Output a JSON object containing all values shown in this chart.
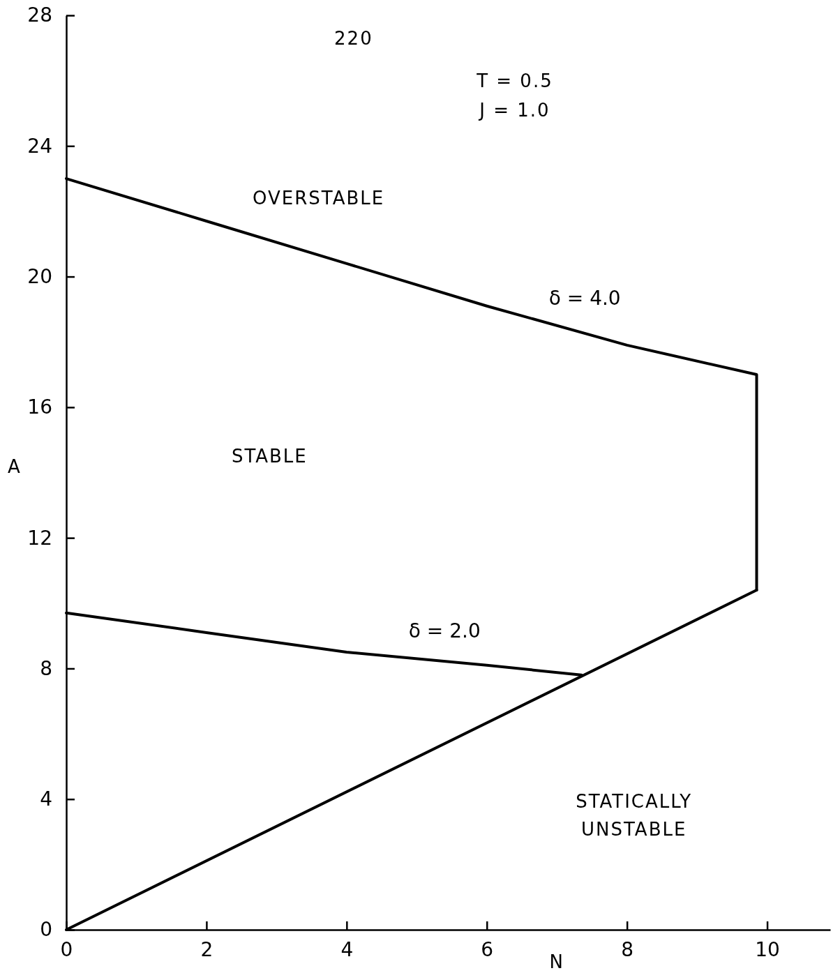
{
  "chart_data": {
    "type": "line",
    "xlabel": "N",
    "ylabel": "A",
    "xlim": [
      0,
      10.9
    ],
    "ylim": [
      0,
      28
    ],
    "xticks": [
      0,
      2,
      4,
      6,
      8,
      10
    ],
    "yticks": [
      0,
      4,
      8,
      12,
      16,
      20,
      24,
      28
    ],
    "grid": false,
    "legend": false,
    "marker": "none",
    "line_style": "solid",
    "series": [
      {
        "name": "δ = 4.0",
        "color": "#000000",
        "x": [
          0,
          2,
          4,
          6,
          8,
          9.85,
          9.85
        ],
        "values": [
          23,
          21.7,
          20.4,
          19.1,
          17.9,
          17,
          10.4
        ]
      },
      {
        "color": "#000000",
        "x": [
          0,
          9.85
        ],
        "values": [
          0,
          10.4
        ]
      },
      {
        "name": "δ = 2.0",
        "color": "#000000",
        "x": [
          0,
          2,
          4,
          6,
          7.35
        ],
        "values": [
          9.7,
          9.1,
          8.5,
          8.1,
          7.8
        ]
      }
    ],
    "annotations": [
      "220",
      "T = 0.5",
      "J = 1.0",
      "OVERSTABLE",
      "STABLE",
      "STATICALLY UNSTABLE"
    ]
  }
}
